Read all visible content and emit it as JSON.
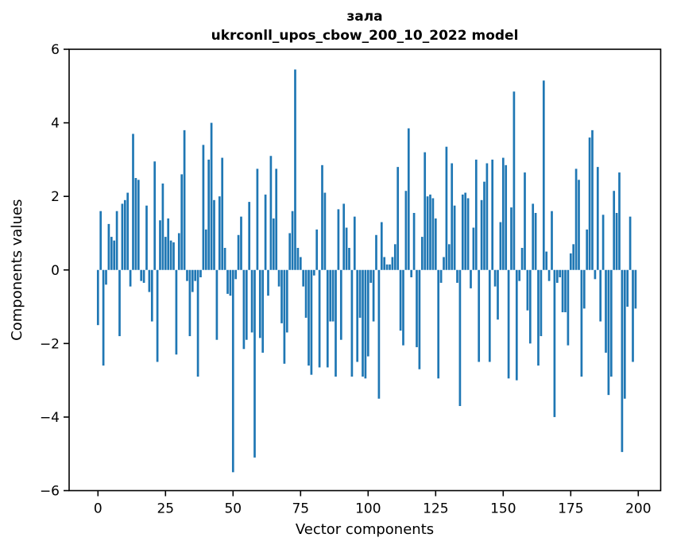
{
  "chart_data": {
    "type": "bar",
    "title": "зала\nukrconll_upos_cbow_200_10_2022 model",
    "title_line1": "зала",
    "title_line2": "ukrconll_upos_cbow_200_10_2022 model",
    "xlabel": "Vector components",
    "ylabel": "Components values",
    "xlim": [
      -10.7,
      208.3
    ],
    "ylim": [
      -6,
      6
    ],
    "grid": false,
    "legend": null,
    "bar_color": "#1f77b4",
    "axis_color": "#000000",
    "x_tick_values": [
      0,
      25,
      50,
      75,
      100,
      125,
      150,
      175,
      200
    ],
    "x_tick_labels": [
      "0",
      "25",
      "50",
      "75",
      "100",
      "125",
      "150",
      "175",
      "200"
    ],
    "y_tick_values": [
      -6,
      -4,
      -2,
      0,
      2,
      4,
      6
    ],
    "y_tick_labels": [
      "−6",
      "−4",
      "−2",
      "0",
      "2",
      "4",
      "6"
    ],
    "x": "0..199 (200 vector components, bar index = component index)",
    "values": [
      -1.5,
      1.6,
      -2.6,
      -0.4,
      1.25,
      0.9,
      0.8,
      1.6,
      -1.8,
      1.8,
      1.9,
      2.1,
      -0.45,
      3.7,
      2.5,
      2.45,
      -0.3,
      -0.35,
      1.75,
      -0.6,
      -1.4,
      2.95,
      -2.5,
      1.35,
      2.35,
      0.9,
      1.4,
      0.8,
      0.75,
      -2.3,
      1.0,
      2.6,
      3.8,
      -0.3,
      -1.8,
      -0.6,
      -0.3,
      -2.9,
      -0.2,
      3.4,
      1.1,
      3.0,
      4.0,
      1.9,
      -1.9,
      2.0,
      3.05,
      0.6,
      -0.65,
      -0.7,
      -5.5,
      -0.25,
      0.95,
      1.45,
      -2.15,
      -1.9,
      1.85,
      -1.7,
      -5.1,
      2.75,
      -1.85,
      -2.25,
      2.05,
      -0.7,
      3.1,
      1.4,
      2.75,
      -0.45,
      -1.45,
      -2.55,
      -1.7,
      1.0,
      1.6,
      5.45,
      0.6,
      0.35,
      -0.45,
      -1.3,
      -2.6,
      -2.85,
      -0.15,
      1.1,
      -2.65,
      2.85,
      2.1,
      -2.65,
      -1.4,
      -1.4,
      -2.9,
      1.65,
      -1.9,
      1.8,
      1.15,
      0.6,
      -2.9,
      1.45,
      -2.5,
      -1.3,
      -2.9,
      -2.95,
      -2.35,
      -0.35,
      -1.4,
      0.95,
      -3.5,
      1.3,
      0.35,
      0.15,
      0.15,
      0.35,
      0.7,
      2.8,
      -1.65,
      -2.05,
      2.15,
      3.85,
      -0.2,
      1.55,
      -2.1,
      -2.7,
      0.9,
      3.2,
      2.0,
      2.05,
      1.95,
      1.4,
      -2.95,
      -0.35,
      0.35,
      3.35,
      0.7,
      2.9,
      1.75,
      -0.35,
      -3.7,
      2.05,
      2.1,
      1.95,
      -0.5,
      1.15,
      3.0,
      -2.5,
      1.9,
      2.4,
      2.9,
      -2.5,
      3.0,
      -0.45,
      -1.35,
      1.3,
      3.05,
      2.85,
      -2.95,
      1.7,
      4.85,
      -3.0,
      -0.3,
      0.6,
      2.65,
      -1.1,
      -2.0,
      1.8,
      1.55,
      -2.6,
      -1.8,
      5.15,
      0.5,
      -0.3,
      1.6,
      -4.0,
      -0.35,
      -0.2,
      -1.15,
      -1.15,
      -2.05,
      0.45,
      0.7,
      2.75,
      2.45,
      -2.9,
      -1.05,
      1.1,
      3.6,
      3.8,
      -0.25,
      2.8,
      -1.4,
      1.5,
      -2.25,
      -3.4,
      -2.9,
      2.15,
      1.55,
      2.65,
      -4.95,
      -3.5,
      -1.0,
      1.45,
      -2.5,
      -1.05
    ]
  }
}
